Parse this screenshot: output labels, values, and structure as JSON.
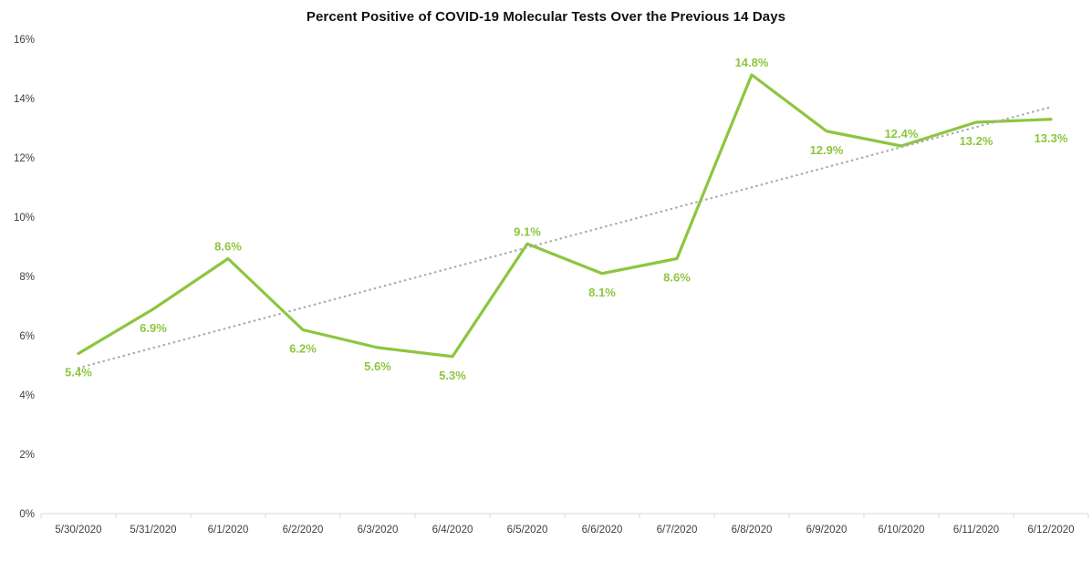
{
  "chart_data": {
    "type": "line",
    "title": "Percent Positive of COVID-19 Molecular Tests Over the Previous 14 Days",
    "categories": [
      "5/30/2020",
      "5/31/2020",
      "6/1/2020",
      "6/2/2020",
      "6/3/2020",
      "6/4/2020",
      "6/5/2020",
      "6/6/2020",
      "6/7/2020",
      "6/8/2020",
      "6/9/2020",
      "6/10/2020",
      "6/11/2020",
      "6/12/2020"
    ],
    "series": [
      {
        "name": "percent-positive",
        "values": [
          5.4,
          6.9,
          8.6,
          6.2,
          5.6,
          5.3,
          9.1,
          8.1,
          8.6,
          14.8,
          12.9,
          12.4,
          13.2,
          13.3
        ],
        "data_labels": [
          "5.4%",
          "6.9%",
          "8.6%",
          "6.2%",
          "5.6%",
          "5.3%",
          "9.1%",
          "8.1%",
          "8.6%",
          "14.8%",
          "12.9%",
          "12.4%",
          "13.2%",
          "13.3%"
        ],
        "label_positions": [
          "below",
          "below",
          "above",
          "below",
          "below",
          "below",
          "above",
          "below",
          "below",
          "above",
          "below",
          "above",
          "below",
          "below"
        ],
        "color": "#8CC63E"
      }
    ],
    "trendline": {
      "type": "linear",
      "style": "dotted",
      "color": "#ADADAD"
    },
    "y_axis": {
      "ticks": [
        "0%",
        "2%",
        "4%",
        "6%",
        "8%",
        "10%",
        "12%",
        "14%",
        "16%"
      ],
      "min": 0,
      "max": 16,
      "gridlines": false
    },
    "x_axis": {
      "line_color": "#D9D9D9",
      "tick_color": "#D9D9D9",
      "label_color": "#404040"
    },
    "legend": "none",
    "background": "#FFFFFF"
  }
}
